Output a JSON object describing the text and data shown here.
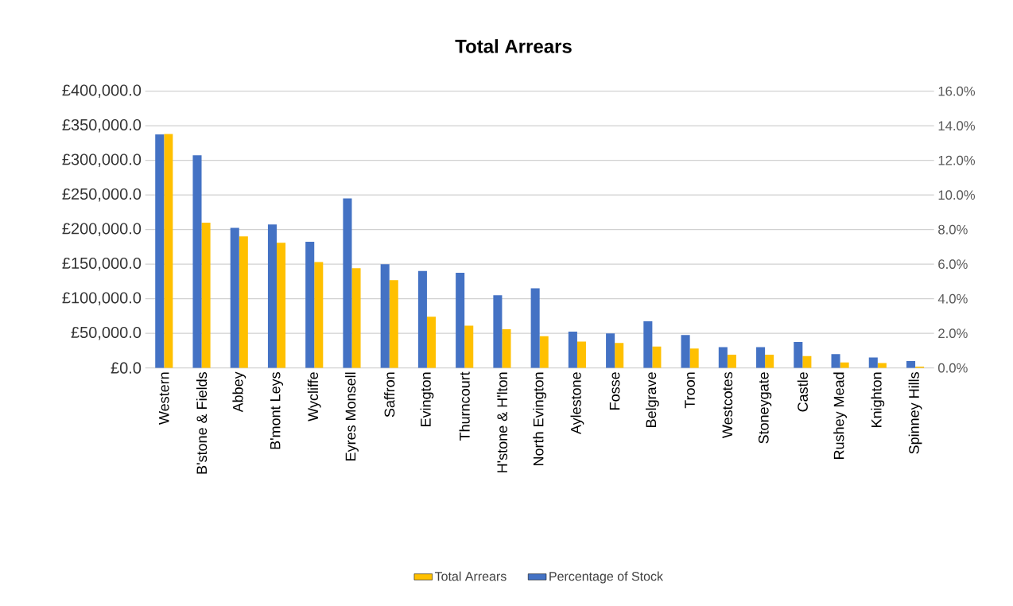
{
  "chart_data": {
    "type": "bar",
    "title": "Total Arrears",
    "categories": [
      "Western",
      "B'stone & Fields",
      "Abbey",
      "B'mont Leys",
      "Wycliffe",
      "Eyres Monsell",
      "Saffron",
      "Evington",
      "Thurncourt",
      "H'stone & H'lton",
      "North Evington",
      "Aylestone",
      "Fosse",
      "Belgrave",
      "Troon",
      "Westcotes",
      "Stoneygate",
      "Castle",
      "Rushey Mead",
      "Knighton",
      "Spinney Hills"
    ],
    "series": [
      {
        "name": "Total Arrears",
        "color": "#ffc000",
        "values": [
          338000,
          210000,
          190000,
          181000,
          153000,
          144000,
          127000,
          74000,
          61000,
          56000,
          46000,
          38000,
          36000,
          31000,
          28000,
          19000,
          19000,
          17000,
          8000,
          7000,
          2000
        ]
      },
      {
        "name": "Percentage of Stock",
        "color": "#4472c4",
        "axis": "y2",
        "values": [
          13.5,
          12.3,
          8.1,
          8.3,
          7.3,
          9.8,
          6.0,
          5.6,
          5.5,
          4.2,
          4.6,
          2.1,
          2.0,
          2.7,
          1.9,
          1.2,
          1.2,
          1.5,
          0.8,
          0.6,
          0.4
        ]
      }
    ],
    "ylim": [
      0,
      400000
    ],
    "yticks": [
      {
        "value": 0,
        "label": "£0.0"
      },
      {
        "value": 50000,
        "label": "£50,000.0"
      },
      {
        "value": 100000,
        "label": "£100,000.0"
      },
      {
        "value": 150000,
        "label": "£150,000.0"
      },
      {
        "value": 200000,
        "label": "£200,000.0"
      },
      {
        "value": 250000,
        "label": "£250,000.0"
      },
      {
        "value": 300000,
        "label": "£300,000.0"
      },
      {
        "value": 350000,
        "label": "£350,000.0"
      },
      {
        "value": 400000,
        "label": "£400,000.0"
      }
    ],
    "y2lim": [
      0,
      16
    ],
    "y2ticks": [
      {
        "value": 0,
        "label": "0.0%"
      },
      {
        "value": 2,
        "label": "2.0%"
      },
      {
        "value": 4,
        "label": "4.0%"
      },
      {
        "value": 6,
        "label": "6.0%"
      },
      {
        "value": 8,
        "label": "8.0%"
      },
      {
        "value": 10,
        "label": "10.0%"
      },
      {
        "value": 12,
        "label": "12.0%"
      },
      {
        "value": 14,
        "label": "14.0%"
      },
      {
        "value": 16,
        "label": "16.0%"
      }
    ],
    "grid": "y",
    "legend": "bottom"
  }
}
